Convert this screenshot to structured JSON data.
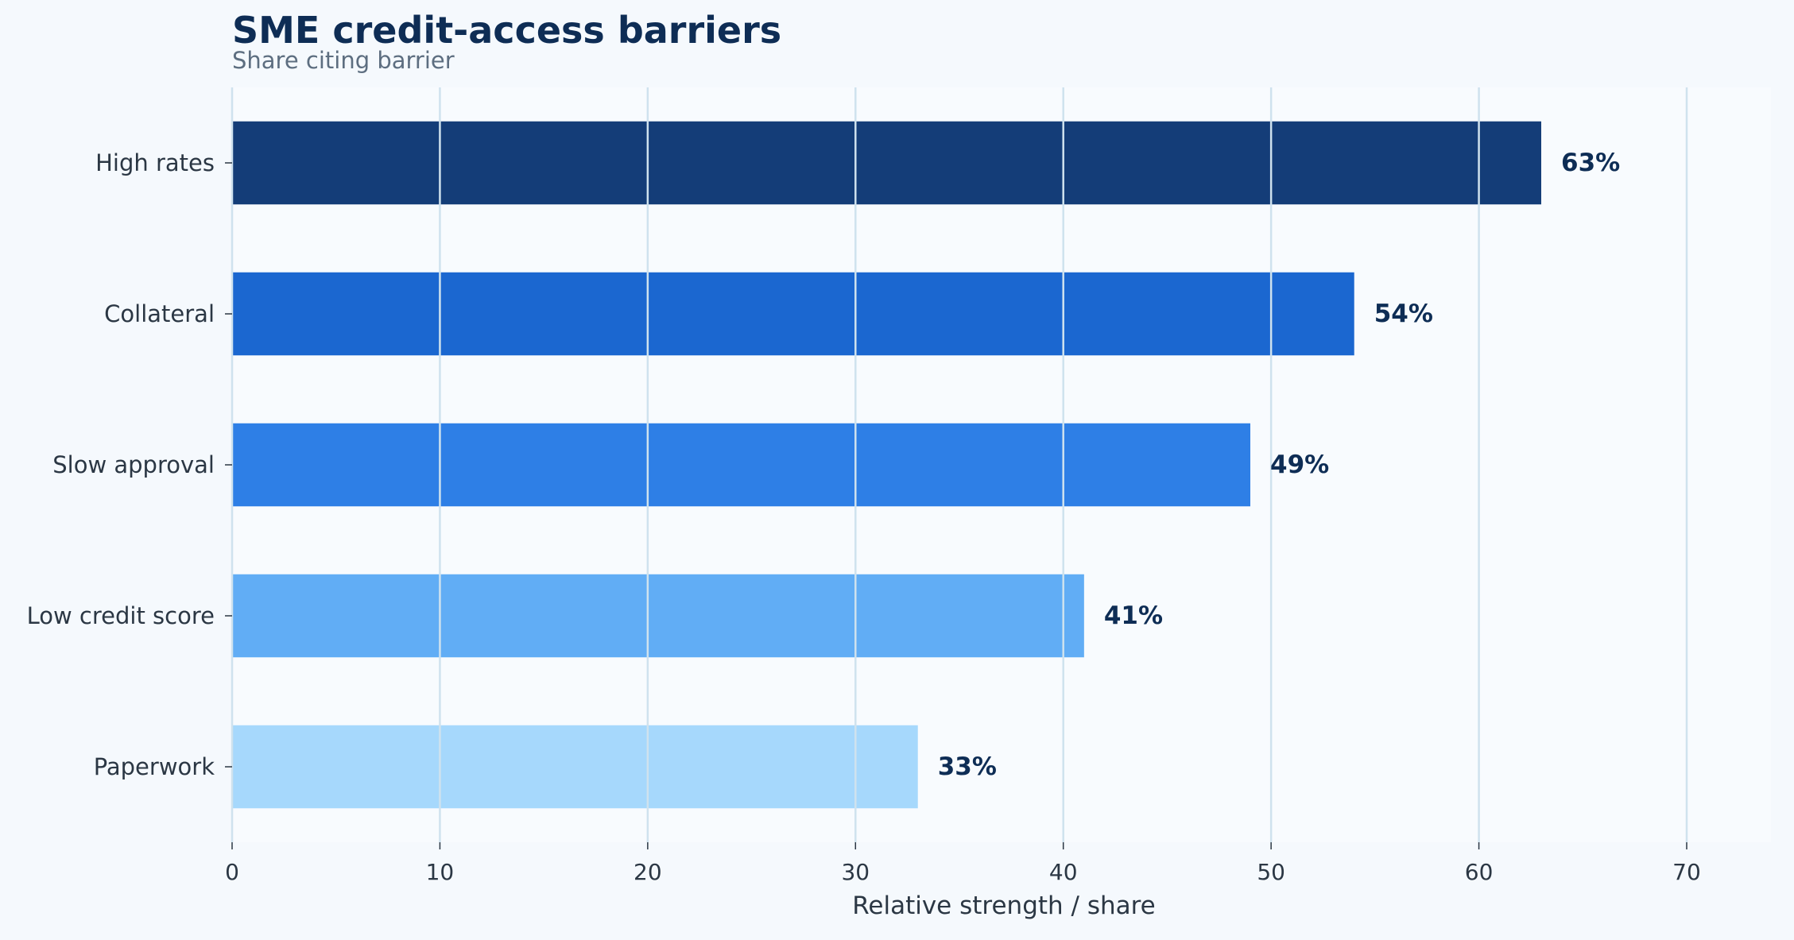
{
  "chart_data": {
    "type": "bar",
    "orientation": "horizontal",
    "title": "SME credit-access barriers",
    "subtitle": "Share citing barrier",
    "xlabel": "Relative strength / share",
    "ylabel": "",
    "xlim": [
      0,
      74
    ],
    "xticks": [
      0,
      10,
      20,
      30,
      40,
      50,
      60,
      70
    ],
    "grid": true,
    "categories": [
      "High rates",
      "Collateral",
      "Slow approval",
      "Low credit score",
      "Paperwork"
    ],
    "values": [
      63,
      54,
      49,
      41,
      33
    ],
    "value_labels": [
      "63%",
      "54%",
      "49%",
      "41%",
      "33%"
    ],
    "bar_colors": [
      "#143d78",
      "#1b67d0",
      "#2e7fe6",
      "#61adf5",
      "#a6d8fc"
    ],
    "colors": {
      "background": "#f5f9fd",
      "plot_background": "#f8fbfe",
      "title": "#0e2d55",
      "subtitle": "#5d6e80",
      "tick_text": "#2b3744",
      "value_label": "#0e2d55",
      "grid": "#cfe2ee"
    }
  }
}
